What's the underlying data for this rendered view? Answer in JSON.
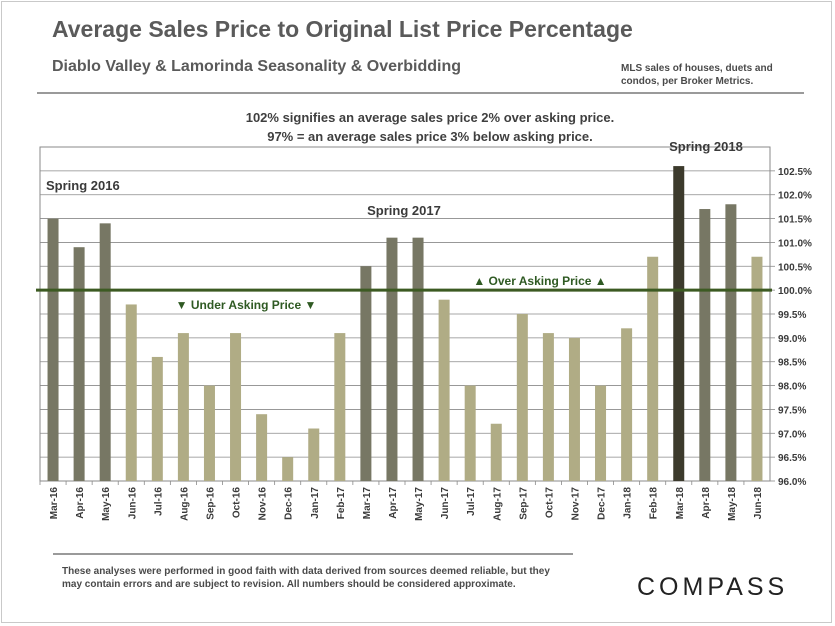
{
  "header": {
    "title": "Average Sales Price to Original List Price Percentage",
    "subtitle": "Diablo Valley  & Lamorinda Seasonality & Overbidding",
    "note_line1": "MLS sales of houses, duets and",
    "note_line2": "condos, per Broker Metrics."
  },
  "explanation": {
    "line1": "102% signifies  an average sales  price 2% over asking  price.",
    "line2": "97% = an average sales  price 3% below asking  price."
  },
  "footer": {
    "disclaimer_line1": "These analyses were performed in good faith with data derived from sources deemed reliable, but they",
    "disclaimer_line2": "may contain errors  and are subject to revision. All numbers should be considered  approximate.",
    "logo": "COMPASS"
  },
  "chart_data": {
    "type": "bar",
    "categories": [
      "Mar-16",
      "Apr-16",
      "May-16",
      "Jun-16",
      "Jul-16",
      "Aug-16",
      "Sep-16",
      "Oct-16",
      "Nov-16",
      "Dec-16",
      "Jan-17",
      "Feb-17",
      "Mar-17",
      "Apr-17",
      "May-17",
      "Jun-17",
      "Jul-17",
      "Aug-17",
      "Sep-17",
      "Oct-17",
      "Nov-17",
      "Dec-17",
      "Jan-18",
      "Feb-18",
      "Mar-18",
      "Apr-18",
      "May-18",
      "Jun-18"
    ],
    "values": [
      101.5,
      100.9,
      101.4,
      99.7,
      98.6,
      99.1,
      98.0,
      99.1,
      97.4,
      96.5,
      97.1,
      99.1,
      100.5,
      101.1,
      101.1,
      99.8,
      98.0,
      97.2,
      99.5,
      99.1,
      99.0,
      98.0,
      99.2,
      100.7,
      102.6,
      101.7,
      101.8,
      100.7
    ],
    "ylim": [
      96.0,
      103.0
    ],
    "yticks": [
      "96.0%",
      "96.5%",
      "97.0%",
      "97.5%",
      "98.0%",
      "98.5%",
      "99.0%",
      "99.5%",
      "100.0%",
      "100.5%",
      "101.0%",
      "101.5%",
      "102.0%",
      "102.5%"
    ],
    "reference_value": 100.0,
    "grid": true,
    "colors": {
      "spring": "#777764",
      "spring_2018_peak": "#3c3a2c",
      "other": "#b0ac85",
      "reference_line": "#3c5a22",
      "annotation_text": "#2f5a23",
      "label_text": "#3a3a3a"
    },
    "bar_groups": [
      "spring",
      "spring",
      "spring",
      "other",
      "other",
      "other",
      "other",
      "other",
      "other",
      "other",
      "other",
      "other",
      "spring",
      "spring",
      "spring",
      "other",
      "other",
      "other",
      "other",
      "other",
      "other",
      "other",
      "other",
      "other",
      "peak",
      "spring",
      "spring",
      "other"
    ],
    "annotations": {
      "spring_2016": "Spring 2016",
      "spring_2017": "Spring 2017",
      "spring_2018": "Spring 2018",
      "under_asking": "▼ Under Asking Price ▼",
      "over_asking": "▲ Over Asking Price ▲"
    }
  }
}
